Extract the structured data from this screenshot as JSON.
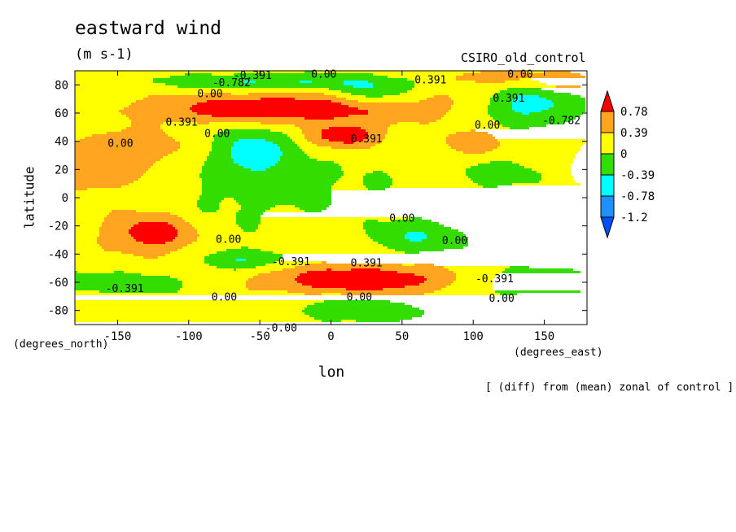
{
  "chart_data": {
    "type": "heatmap",
    "title": "eastward wind",
    "units_label": "(m s-1)",
    "model_label": "CSIRO_old_control",
    "xlabel": "lon",
    "ylabel": "latitude",
    "x_units": "(degrees_east)",
    "y_units": "(degrees_north)",
    "note": "[ (diff) from (mean) zonal of control ]",
    "xlim": [
      -180,
      180
    ],
    "ylim": [
      -90,
      90
    ],
    "x_ticks": [
      -150,
      -100,
      -50,
      0,
      50,
      100,
      150
    ],
    "y_ticks": [
      -80,
      -60,
      -40,
      -20,
      0,
      20,
      40,
      60,
      80
    ],
    "x_tick_labels": [
      "-150",
      "-100",
      "-50",
      "0",
      "50",
      "100",
      "150"
    ],
    "y_tick_labels": [
      "-80",
      "-60",
      "-40",
      "-20",
      "0",
      "20",
      "40",
      "60",
      "80"
    ],
    "colorbar": {
      "levels": [
        0.78,
        0.39,
        0,
        -0.39,
        -0.78,
        -1.2
      ],
      "labels": [
        "0.78",
        "0.39",
        "0",
        "-0.39",
        "-0.78",
        "-1.2"
      ],
      "colors": [
        "#ff0000",
        "#ffa520",
        "#ffff00",
        "#33dd00",
        "#00ffff",
        "#1e90ff",
        "#0050ff"
      ]
    },
    "contour_labels": [
      {
        "text": "-0.391",
        "lon": -55,
        "lat": 87
      },
      {
        "text": "0.00",
        "lon": -5,
        "lat": 88
      },
      {
        "text": "-0.782",
        "lon": -70,
        "lat": 82
      },
      {
        "text": "0.00",
        "lon": -85,
        "lat": 74
      },
      {
        "text": "0.391",
        "lon": 70,
        "lat": 84
      },
      {
        "text": "0.00",
        "lon": 133,
        "lat": 88
      },
      {
        "text": "0.391",
        "lon": 125,
        "lat": 71
      },
      {
        "text": "-0.782",
        "lon": 162,
        "lat": 55
      },
      {
        "text": "0.00",
        "lon": 110,
        "lat": 52
      },
      {
        "text": "0.391",
        "lon": -105,
        "lat": 54
      },
      {
        "text": "0.00",
        "lon": -80,
        "lat": 46
      },
      {
        "text": "0.391",
        "lon": 25,
        "lat": 42
      },
      {
        "text": "0.00",
        "lon": -148,
        "lat": 39
      },
      {
        "text": "0.00",
        "lon": 50,
        "lat": -14
      },
      {
        "text": "0.00",
        "lon": 87,
        "lat": -30
      },
      {
        "text": "0.00",
        "lon": -72,
        "lat": -29
      },
      {
        "text": "-0.391",
        "lon": -28,
        "lat": -45
      },
      {
        "text": "0.391",
        "lon": 25,
        "lat": -46
      },
      {
        "text": "-0.391",
        "lon": 115,
        "lat": -57
      },
      {
        "text": "-0.391",
        "lon": -145,
        "lat": -64
      },
      {
        "text": "0.00",
        "lon": -75,
        "lat": -70
      },
      {
        "text": "0.00",
        "lon": 20,
        "lat": -70
      },
      {
        "text": "0.00",
        "lon": 120,
        "lat": -71
      },
      {
        "text": "-0.00",
        "lon": -35,
        "lat": -92
      }
    ],
    "features": [
      {
        "lon": -180,
        "lat": 0,
        "value": 0.18,
        "slon": 900,
        "slat": 900
      },
      {
        "lon": 0,
        "lat": 8,
        "value": -0.18,
        "slon": 55,
        "slat": 16
      },
      {
        "lon": -150,
        "lat": 10,
        "value": 0.12,
        "slon": 40,
        "slat": 30
      },
      {
        "lon": -125,
        "lat": -25,
        "value": 0.9,
        "slon": 22,
        "slat": 10
      },
      {
        "lon": -140,
        "lat": 35,
        "value": 0.42,
        "slon": 28,
        "slat": 9
      },
      {
        "lon": -165,
        "lat": 18,
        "value": 0.38,
        "slon": 20,
        "slat": 10
      },
      {
        "lon": -40,
        "lat": 63,
        "value": 0.95,
        "slon": 60,
        "slat": 7
      },
      {
        "lon": 80,
        "lat": 67,
        "value": 0.3,
        "slon": 80,
        "slat": 9
      },
      {
        "lon": 10,
        "lat": 44,
        "value": 0.9,
        "slon": 18,
        "slat": 6
      },
      {
        "lon": -55,
        "lat": 32,
        "value": -0.75,
        "slon": 20,
        "slat": 13
      },
      {
        "lon": -40,
        "lat": 82,
        "value": -0.62,
        "slon": 60,
        "slat": 4
      },
      {
        "lon": 30,
        "lat": 73,
        "value": -0.62,
        "slon": 22,
        "slat": 7
      },
      {
        "lon": 140,
        "lat": 66,
        "value": -0.95,
        "slon": 28,
        "slat": 10
      },
      {
        "lon": 165,
        "lat": 82,
        "value": 0.55,
        "slon": 15,
        "slat": 5
      },
      {
        "lon": 115,
        "lat": 85,
        "value": 0.45,
        "slon": 25,
        "slat": 5
      },
      {
        "lon": 100,
        "lat": 38,
        "value": 0.45,
        "slon": 18,
        "slat": 8
      },
      {
        "lon": 20,
        "lat": -58,
        "value": 1.05,
        "slon": 45,
        "slat": 7
      },
      {
        "lon": -60,
        "lat": -44,
        "value": -0.55,
        "slon": 20,
        "slat": 5
      },
      {
        "lon": 60,
        "lat": -28,
        "value": -0.55,
        "slon": 22,
        "slat": 8
      },
      {
        "lon": 140,
        "lat": -60,
        "value": -0.55,
        "slon": 28,
        "slat": 7
      },
      {
        "lon": -140,
        "lat": -62,
        "value": -0.5,
        "slon": 30,
        "slat": 6
      },
      {
        "lon": 20,
        "lat": -80,
        "value": -0.5,
        "slon": 35,
        "slat": 6
      },
      {
        "lon": 120,
        "lat": 18,
        "value": -0.3,
        "slon": 30,
        "slat": 10
      },
      {
        "lon": -150,
        "lat": -75,
        "value": 0.15,
        "slon": 60,
        "slat": 10
      },
      {
        "lon": -90,
        "lat": -8,
        "value": -0.2,
        "slon": 45,
        "slat": 20
      }
    ]
  }
}
